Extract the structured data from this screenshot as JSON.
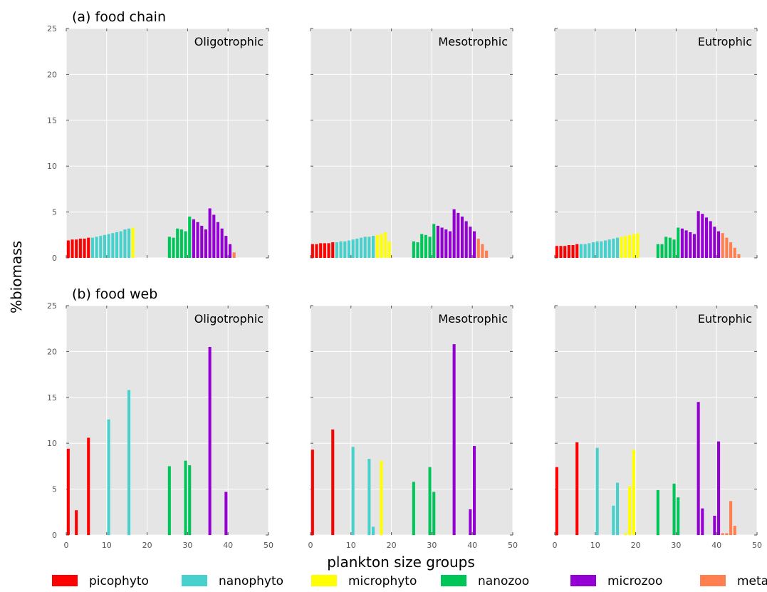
{
  "figure": {
    "ylabel": "%biomass",
    "xlabel": "plankton size groups"
  },
  "colors": {
    "picophyto": "#ff0000",
    "nanophyto": "#48d1cc",
    "microphyto": "#ffff00",
    "nanozoo": "#00c65a",
    "microzoo": "#9400d3",
    "metazoo": "#ff7f50",
    "panel_bg": "#e5e5e5",
    "grid": "#ffffff"
  },
  "legend": [
    {
      "key": "picophyto",
      "label": "picophyto"
    },
    {
      "key": "nanophyto",
      "label": "nanophyto"
    },
    {
      "key": "microphyto",
      "label": "microphyto"
    },
    {
      "key": "nanozoo",
      "label": "nanozoo"
    },
    {
      "key": "microzoo",
      "label": "microzoo"
    },
    {
      "key": "metazoo",
      "label": "metazoo"
    }
  ],
  "chart_data": [
    {
      "type": "bar",
      "row_title": "(a) food chain",
      "title": "Oligotrophic",
      "xlim": [
        0,
        50
      ],
      "ylim": [
        0,
        25
      ],
      "xticks": [
        0,
        10,
        20,
        30,
        40,
        50
      ],
      "yticks": [
        0,
        5,
        10,
        15,
        20,
        25
      ],
      "grid": true,
      "series": [
        {
          "group": "picophyto",
          "x": [
            0,
            1,
            2,
            3,
            4,
            5
          ],
          "values": [
            1.9,
            2.0,
            2.0,
            2.1,
            2.1,
            2.2
          ]
        },
        {
          "group": "nanophyto",
          "x": [
            6,
            7,
            8,
            9,
            10,
            11,
            12,
            13,
            14,
            15
          ],
          "values": [
            2.2,
            2.3,
            2.4,
            2.5,
            2.6,
            2.7,
            2.8,
            2.9,
            3.1,
            3.2
          ]
        },
        {
          "group": "microphyto",
          "x": [
            16
          ],
          "values": [
            3.3
          ]
        },
        {
          "group": "nanozoo",
          "x": [
            25,
            26,
            27,
            28,
            29,
            30
          ],
          "values": [
            2.3,
            2.2,
            3.2,
            3.1,
            2.9,
            4.5
          ]
        },
        {
          "group": "microzoo",
          "x": [
            31,
            32,
            33,
            34,
            35,
            36,
            37,
            38,
            39,
            40
          ],
          "values": [
            4.2,
            3.9,
            3.5,
            3.1,
            5.4,
            4.7,
            3.9,
            3.2,
            2.4,
            1.5
          ]
        },
        {
          "group": "metazoo",
          "x": [
            41
          ],
          "values": [
            0.6
          ]
        }
      ]
    },
    {
      "type": "bar",
      "row_title": "",
      "title": "Mesotrophic",
      "xlim": [
        0,
        50
      ],
      "ylim": [
        0,
        25
      ],
      "xticks": [
        0,
        10,
        20,
        30,
        40,
        50
      ],
      "yticks": [
        0,
        5,
        10,
        15,
        20,
        25
      ],
      "grid": true,
      "series": [
        {
          "group": "picophyto",
          "x": [
            0,
            1,
            2,
            3,
            4,
            5
          ],
          "values": [
            1.5,
            1.5,
            1.6,
            1.6,
            1.6,
            1.7
          ]
        },
        {
          "group": "nanophyto",
          "x": [
            6,
            7,
            8,
            9,
            10,
            11,
            12,
            13,
            14,
            15
          ],
          "values": [
            1.7,
            1.8,
            1.8,
            1.9,
            2.0,
            2.1,
            2.2,
            2.3,
            2.3,
            2.4
          ]
        },
        {
          "group": "microphyto",
          "x": [
            16,
            17,
            18,
            19
          ],
          "values": [
            2.5,
            2.6,
            2.8,
            1.8
          ]
        },
        {
          "group": "nanozoo",
          "x": [
            25,
            26,
            27,
            28,
            29,
            30
          ],
          "values": [
            1.8,
            1.7,
            2.6,
            2.5,
            2.3,
            3.7
          ]
        },
        {
          "group": "microzoo",
          "x": [
            31,
            32,
            33,
            34,
            35,
            36,
            37,
            38,
            39,
            40
          ],
          "values": [
            3.5,
            3.3,
            3.1,
            2.9,
            5.3,
            4.9,
            4.5,
            4.0,
            3.4,
            2.9
          ]
        },
        {
          "group": "metazoo",
          "x": [
            41,
            42,
            43
          ],
          "values": [
            2.1,
            1.5,
            0.8
          ]
        }
      ]
    },
    {
      "type": "bar",
      "row_title": "",
      "title": "Eutrophic",
      "xlim": [
        0,
        50
      ],
      "ylim": [
        0,
        25
      ],
      "xticks": [
        0,
        10,
        20,
        30,
        40,
        50
      ],
      "yticks": [
        0,
        5,
        10,
        15,
        20,
        25
      ],
      "grid": true,
      "series": [
        {
          "group": "picophyto",
          "x": [
            0,
            1,
            2,
            3,
            4,
            5
          ],
          "values": [
            1.3,
            1.3,
            1.3,
            1.4,
            1.4,
            1.5
          ]
        },
        {
          "group": "nanophyto",
          "x": [
            6,
            7,
            8,
            9,
            10,
            11,
            12,
            13,
            14,
            15
          ],
          "values": [
            1.5,
            1.5,
            1.6,
            1.7,
            1.8,
            1.8,
            1.9,
            2.0,
            2.1,
            2.2
          ]
        },
        {
          "group": "microphyto",
          "x": [
            16,
            17,
            18,
            19,
            20
          ],
          "values": [
            2.3,
            2.4,
            2.5,
            2.6,
            2.7
          ]
        },
        {
          "group": "nanozoo",
          "x": [
            25,
            26,
            27,
            28,
            29,
            30
          ],
          "values": [
            1.5,
            1.5,
            2.3,
            2.2,
            2.0,
            3.3
          ]
        },
        {
          "group": "microzoo",
          "x": [
            31,
            32,
            33,
            34,
            35,
            36,
            37,
            38,
            39,
            40
          ],
          "values": [
            3.2,
            3.0,
            2.8,
            2.6,
            5.1,
            4.8,
            4.4,
            4.0,
            3.4,
            2.9
          ]
        },
        {
          "group": "metazoo",
          "x": [
            41,
            42,
            43,
            44,
            45
          ],
          "values": [
            2.7,
            2.2,
            1.7,
            1.1,
            0.4
          ]
        }
      ]
    },
    {
      "type": "bar",
      "row_title": "(b) food web",
      "title": "Oligotrophic",
      "xlim": [
        0,
        50
      ],
      "ylim": [
        0,
        25
      ],
      "xticks": [
        0,
        10,
        20,
        30,
        40,
        50
      ],
      "yticks": [
        0,
        5,
        10,
        15,
        20,
        25
      ],
      "grid": true,
      "series": [
        {
          "group": "picophyto",
          "x": [
            0,
            2,
            5
          ],
          "values": [
            9.4,
            2.7,
            10.6
          ]
        },
        {
          "group": "nanophyto",
          "x": [
            10,
            15
          ],
          "values": [
            12.6,
            15.8
          ]
        },
        {
          "group": "microphyto",
          "x": [],
          "values": []
        },
        {
          "group": "nanozoo",
          "x": [
            25,
            29,
            30
          ],
          "values": [
            7.5,
            8.1,
            7.6
          ]
        },
        {
          "group": "microzoo",
          "x": [
            35,
            39
          ],
          "values": [
            20.5,
            4.7
          ]
        },
        {
          "group": "metazoo",
          "x": [],
          "values": []
        }
      ]
    },
    {
      "type": "bar",
      "row_title": "",
      "title": "Mesotrophic",
      "xlim": [
        0,
        50
      ],
      "ylim": [
        0,
        25
      ],
      "xticks": [
        0,
        10,
        20,
        30,
        40,
        50
      ],
      "yticks": [
        0,
        5,
        10,
        15,
        20,
        25
      ],
      "grid": true,
      "series": [
        {
          "group": "picophyto",
          "x": [
            0,
            5
          ],
          "values": [
            9.3,
            11.5
          ]
        },
        {
          "group": "nanophyto",
          "x": [
            10,
            14,
            15
          ],
          "values": [
            9.6,
            8.3,
            0.9
          ]
        },
        {
          "group": "microphyto",
          "x": [
            17
          ],
          "values": [
            8.1
          ]
        },
        {
          "group": "nanozoo",
          "x": [
            25,
            29,
            30
          ],
          "values": [
            5.8,
            7.4,
            4.7
          ]
        },
        {
          "group": "microzoo",
          "x": [
            35,
            39,
            40
          ],
          "values": [
            20.8,
            2.8,
            9.7
          ]
        },
        {
          "group": "metazoo",
          "x": [],
          "values": []
        }
      ]
    },
    {
      "type": "bar",
      "row_title": "",
      "title": "Eutrophic",
      "xlim": [
        0,
        50
      ],
      "ylim": [
        0,
        25
      ],
      "xticks": [
        0,
        10,
        20,
        30,
        40,
        50
      ],
      "yticks": [
        0,
        5,
        10,
        15,
        20,
        25
      ],
      "grid": true,
      "series": [
        {
          "group": "picophyto",
          "x": [
            0,
            5
          ],
          "values": [
            7.4,
            10.1
          ]
        },
        {
          "group": "nanophyto",
          "x": [
            10,
            14,
            15
          ],
          "values": [
            9.5,
            3.2,
            5.7
          ]
        },
        {
          "group": "microphyto",
          "x": [
            17,
            18,
            19
          ],
          "values": [
            0.2,
            5.3,
            9.3
          ]
        },
        {
          "group": "nanozoo",
          "x": [
            25,
            29,
            30
          ],
          "values": [
            4.9,
            5.6,
            4.1
          ]
        },
        {
          "group": "microzoo",
          "x": [
            35,
            36,
            39,
            40
          ],
          "values": [
            14.5,
            2.9,
            2.1,
            10.2
          ]
        },
        {
          "group": "metazoo",
          "x": [
            41,
            42,
            43,
            44
          ],
          "values": [
            0.2,
            0.2,
            3.7,
            1.0
          ]
        }
      ]
    }
  ]
}
